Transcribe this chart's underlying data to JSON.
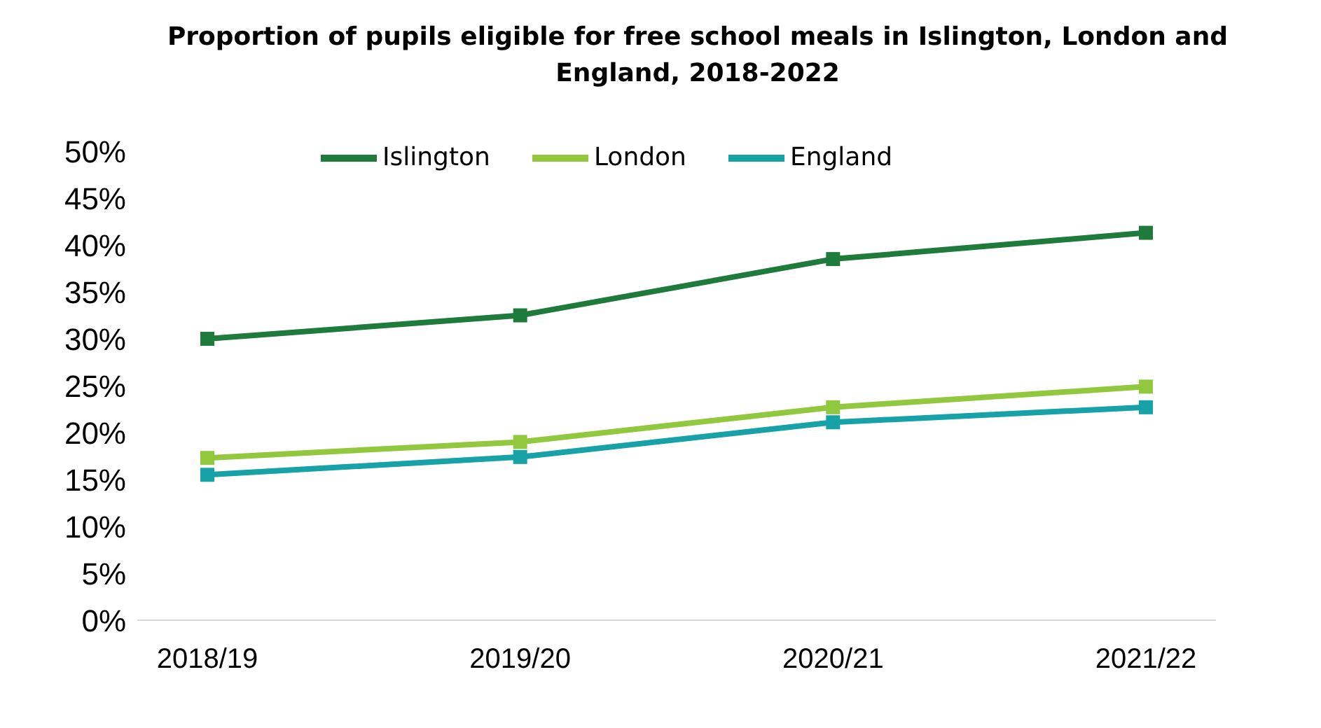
{
  "chart_data": {
    "type": "line",
    "title": "Proportion of pupils eligible for free school meals in Islington, London and England, 2018-2022",
    "categories": [
      "2018/19",
      "2019/20",
      "2020/21",
      "2021/22"
    ],
    "series": [
      {
        "name": "Islington",
        "color": "#1e7b3c",
        "values": [
          30,
          32.5,
          38.5,
          41.3
        ]
      },
      {
        "name": "London",
        "color": "#92c83e",
        "values": [
          17.3,
          19,
          22.7,
          24.9
        ]
      },
      {
        "name": "England",
        "color": "#17a2a8",
        "values": [
          15.5,
          17.4,
          21.1,
          22.7
        ]
      }
    ],
    "ylim": [
      0,
      50
    ],
    "yticks": [
      {
        "value": 0,
        "label": "0%"
      },
      {
        "value": 5,
        "label": "5%"
      },
      {
        "value": 10,
        "label": "10%"
      },
      {
        "value": 15,
        "label": "15%"
      },
      {
        "value": 20,
        "label": "20%"
      },
      {
        "value": 25,
        "label": "25%"
      },
      {
        "value": 30,
        "label": "30%"
      },
      {
        "value": 35,
        "label": "35%"
      },
      {
        "value": 40,
        "label": "40%"
      },
      {
        "value": 45,
        "label": "45%"
      },
      {
        "value": 50,
        "label": "50%"
      }
    ],
    "grid": false,
    "legend": "top",
    "marker": "square",
    "line_style": "solid"
  }
}
